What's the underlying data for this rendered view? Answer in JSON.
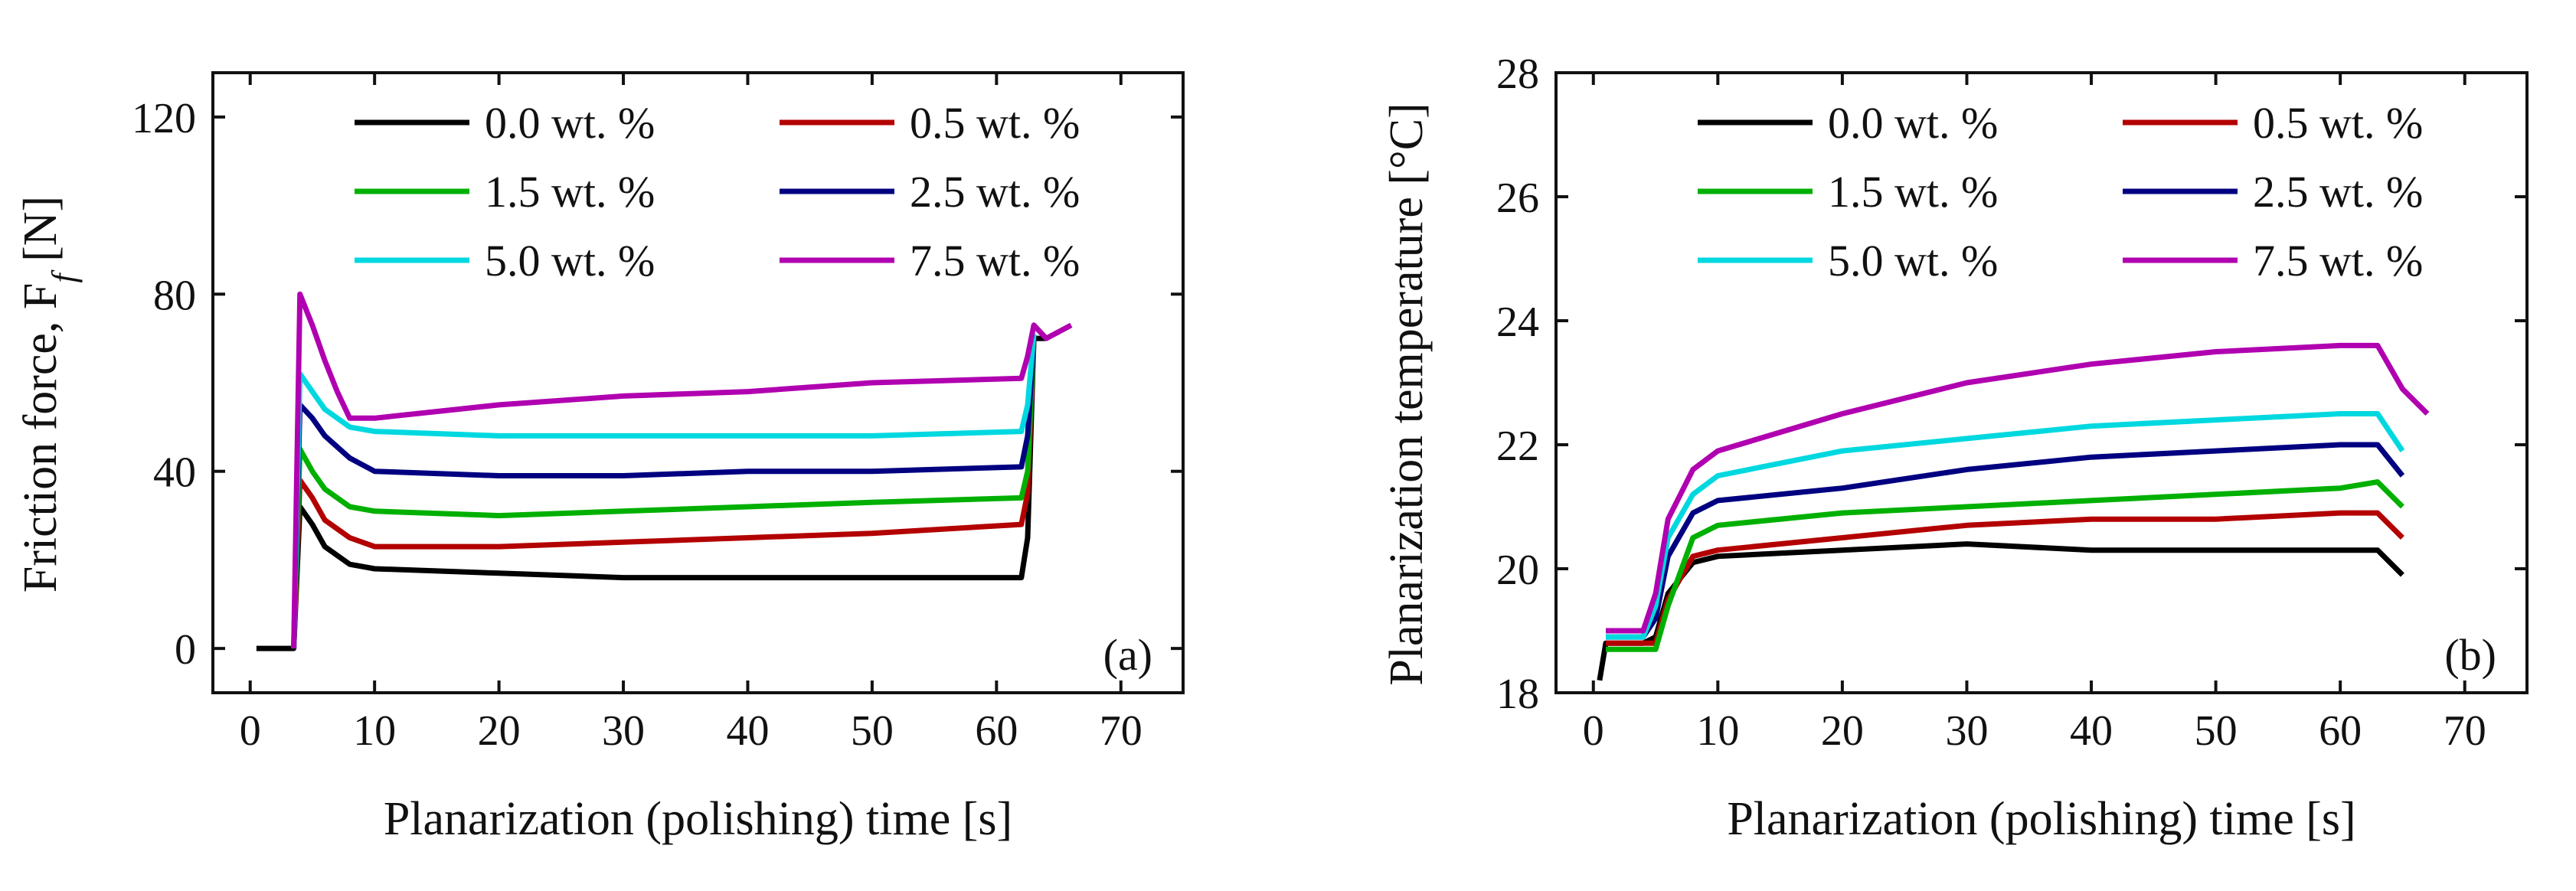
{
  "chart_data": [
    {
      "type": "line",
      "panel_label": "(a)",
      "xlabel": "Planarization (polishing) time [s]",
      "ylabel": "Friction force, F",
      "ylabel_subscript": "f",
      "ylabel_unit": " [N]",
      "xlim": [
        -3,
        75
      ],
      "ylim": [
        -10,
        130
      ],
      "x_ticks": [
        0,
        10,
        20,
        30,
        40,
        50,
        60,
        70
      ],
      "x_tick_labels": [
        "0",
        "10",
        "20",
        "30",
        "40",
        "50",
        "60",
        "70"
      ],
      "y_ticks": [
        0,
        40,
        80,
        120
      ],
      "y_tick_labels": [
        "0",
        "40",
        "80",
        "120"
      ],
      "legend": [
        "0.0 wt. %",
        "0.5 wt. %",
        "1.5 wt. %",
        "2.5 wt. %",
        "5.0 wt. %",
        "7.5 wt. %"
      ],
      "series": [
        {
          "name": "0.0 wt. %",
          "color": "#000000",
          "points": [
            [
              0.5,
              0
            ],
            [
              3.5,
              0
            ],
            [
              4.0,
              32
            ],
            [
              5,
              28
            ],
            [
              6,
              23
            ],
            [
              8,
              19
            ],
            [
              10,
              18
            ],
            [
              20,
              17
            ],
            [
              30,
              16
            ],
            [
              40,
              16
            ],
            [
              50,
              16
            ],
            [
              62,
              16
            ],
            [
              62.5,
              25
            ],
            [
              63,
              70
            ],
            [
              64,
              70
            ]
          ]
        },
        {
          "name": "0.5 wt. %",
          "color": "#b30000",
          "points": [
            [
              3.5,
              0
            ],
            [
              4.0,
              38
            ],
            [
              5,
              34
            ],
            [
              6,
              29
            ],
            [
              8,
              25
            ],
            [
              10,
              23
            ],
            [
              20,
              23
            ],
            [
              30,
              24
            ],
            [
              40,
              25
            ],
            [
              50,
              26
            ],
            [
              62,
              28
            ],
            [
              62.5,
              35
            ],
            [
              63,
              70
            ]
          ]
        },
        {
          "name": "1.5 wt. %",
          "color": "#00b000",
          "points": [
            [
              3.5,
              0
            ],
            [
              4.0,
              45
            ],
            [
              5,
              40
            ],
            [
              6,
              36
            ],
            [
              8,
              32
            ],
            [
              10,
              31
            ],
            [
              20,
              30
            ],
            [
              30,
              31
            ],
            [
              40,
              32
            ],
            [
              50,
              33
            ],
            [
              62,
              34
            ],
            [
              62.5,
              40
            ],
            [
              63,
              70
            ]
          ]
        },
        {
          "name": "2.5 wt. %",
          "color": "#000080",
          "points": [
            [
              3.5,
              0
            ],
            [
              4.0,
              55
            ],
            [
              5,
              52
            ],
            [
              6,
              48
            ],
            [
              8,
              43
            ],
            [
              10,
              40
            ],
            [
              20,
              39
            ],
            [
              30,
              39
            ],
            [
              40,
              40
            ],
            [
              50,
              40
            ],
            [
              62,
              41
            ],
            [
              62.5,
              48
            ],
            [
              63,
              70
            ]
          ]
        },
        {
          "name": "5.0 wt. %",
          "color": "#00d8e0",
          "points": [
            [
              3.5,
              0
            ],
            [
              4.0,
              62
            ],
            [
              5,
              58
            ],
            [
              6,
              54
            ],
            [
              8,
              50
            ],
            [
              10,
              49
            ],
            [
              20,
              48
            ],
            [
              30,
              48
            ],
            [
              40,
              48
            ],
            [
              50,
              48
            ],
            [
              62,
              49
            ],
            [
              62.5,
              55
            ],
            [
              63,
              71
            ]
          ]
        },
        {
          "name": "7.5 wt. %",
          "color": "#b000b0",
          "points": [
            [
              3.5,
              0
            ],
            [
              4.0,
              80
            ],
            [
              5,
              73
            ],
            [
              6,
              65
            ],
            [
              7,
              58
            ],
            [
              8,
              52
            ],
            [
              10,
              52
            ],
            [
              20,
              55
            ],
            [
              30,
              57
            ],
            [
              40,
              58
            ],
            [
              50,
              60
            ],
            [
              62,
              61
            ],
            [
              62.5,
              66
            ],
            [
              63,
              73
            ],
            [
              64,
              70
            ],
            [
              66,
              73
            ]
          ]
        }
      ]
    },
    {
      "type": "line",
      "panel_label": "(b)",
      "xlabel": "Planarization (polishing) time [s]",
      "ylabel": "Planarization temperature [°C]",
      "xlim": [
        -3,
        75
      ],
      "ylim": [
        18,
        28
      ],
      "x_ticks": [
        0,
        10,
        20,
        30,
        40,
        50,
        60,
        70
      ],
      "x_tick_labels": [
        "0",
        "10",
        "20",
        "30",
        "40",
        "50",
        "60",
        "70"
      ],
      "y_ticks": [
        18,
        20,
        22,
        24,
        26,
        28
      ],
      "y_tick_labels": [
        "18",
        "20",
        "22",
        "24",
        "26",
        "28"
      ],
      "legend": [
        "0.0 wt. %",
        "0.5 wt. %",
        "1.5 wt. %",
        "2.5 wt. %",
        "5.0 wt. %",
        "7.5 wt. %"
      ],
      "series": [
        {
          "name": "0.0 wt. %",
          "color": "#000000",
          "points": [
            [
              0.5,
              18.2
            ],
            [
              1,
              18.8
            ],
            [
              4,
              18.8
            ],
            [
              5,
              18.9
            ],
            [
              6,
              19.6
            ],
            [
              8,
              20.1
            ],
            [
              10,
              20.2
            ],
            [
              20,
              20.3
            ],
            [
              30,
              20.4
            ],
            [
              40,
              20.3
            ],
            [
              50,
              20.3
            ],
            [
              60,
              20.3
            ],
            [
              63,
              20.3
            ],
            [
              65,
              19.9
            ]
          ]
        },
        {
          "name": "0.5 wt. %",
          "color": "#b30000",
          "points": [
            [
              1,
              18.8
            ],
            [
              4,
              18.8
            ],
            [
              5,
              18.8
            ],
            [
              6,
              19.5
            ],
            [
              8,
              20.2
            ],
            [
              10,
              20.3
            ],
            [
              20,
              20.5
            ],
            [
              30,
              20.7
            ],
            [
              40,
              20.8
            ],
            [
              50,
              20.8
            ],
            [
              60,
              20.9
            ],
            [
              63,
              20.9
            ],
            [
              65,
              20.5
            ]
          ]
        },
        {
          "name": "1.5 wt. %",
          "color": "#00b000",
          "points": [
            [
              1,
              18.7
            ],
            [
              4,
              18.7
            ],
            [
              5,
              18.7
            ],
            [
              6,
              19.4
            ],
            [
              8,
              20.5
            ],
            [
              10,
              20.7
            ],
            [
              20,
              20.9
            ],
            [
              30,
              21.0
            ],
            [
              40,
              21.1
            ],
            [
              50,
              21.2
            ],
            [
              60,
              21.3
            ],
            [
              63,
              21.4
            ],
            [
              65,
              21.0
            ]
          ]
        },
        {
          "name": "2.5 wt. %",
          "color": "#000080",
          "points": [
            [
              1,
              18.9
            ],
            [
              4,
              18.9
            ],
            [
              5,
              19.2
            ],
            [
              6,
              20.2
            ],
            [
              8,
              20.9
            ],
            [
              10,
              21.1
            ],
            [
              20,
              21.3
            ],
            [
              30,
              21.6
            ],
            [
              40,
              21.8
            ],
            [
              50,
              21.9
            ],
            [
              60,
              22.0
            ],
            [
              63,
              22.0
            ],
            [
              65,
              21.5
            ]
          ]
        },
        {
          "name": "5.0 wt. %",
          "color": "#00d8e0",
          "points": [
            [
              1,
              18.9
            ],
            [
              4,
              18.9
            ],
            [
              5,
              19.4
            ],
            [
              6,
              20.5
            ],
            [
              8,
              21.2
            ],
            [
              10,
              21.5
            ],
            [
              20,
              21.9
            ],
            [
              30,
              22.1
            ],
            [
              40,
              22.3
            ],
            [
              50,
              22.4
            ],
            [
              60,
              22.5
            ],
            [
              63,
              22.5
            ],
            [
              65,
              21.9
            ]
          ]
        },
        {
          "name": "7.5 wt. %",
          "color": "#b000b0",
          "points": [
            [
              1,
              19.0
            ],
            [
              4,
              19.0
            ],
            [
              5,
              19.6
            ],
            [
              6,
              20.8
            ],
            [
              8,
              21.6
            ],
            [
              10,
              21.9
            ],
            [
              20,
              22.5
            ],
            [
              30,
              23.0
            ],
            [
              40,
              23.3
            ],
            [
              50,
              23.5
            ],
            [
              60,
              23.6
            ],
            [
              63,
              23.6
            ],
            [
              65,
              22.9
            ],
            [
              67,
              22.5
            ]
          ]
        }
      ]
    }
  ]
}
